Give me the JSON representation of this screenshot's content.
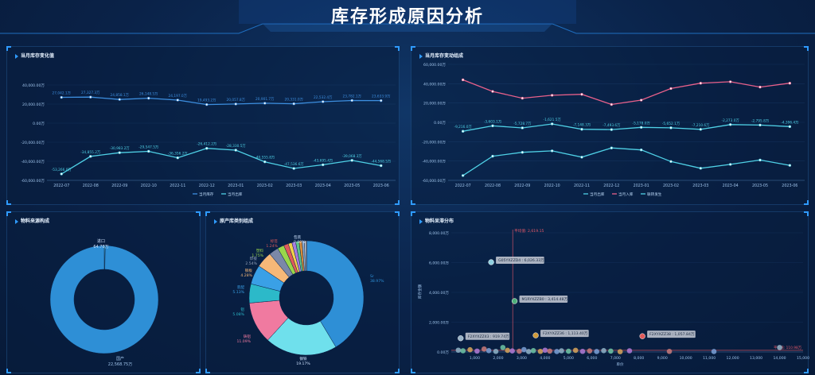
{
  "page": {
    "title": "库存形成原因分析"
  },
  "colors": {
    "accent": "#2f9bff",
    "cyan": "#4fd1e6",
    "pink": "#e8608a",
    "blue": "#3d8fe0"
  },
  "panels": {
    "p1": "当月库存变化值",
    "p2": "当月库存变动组成",
    "p3": "物料来源构成",
    "p4": "原产库类别组成",
    "p5": "物料呆滞分布"
  },
  "chart_data": [
    {
      "type": "line",
      "categories": [
        "2022-07",
        "2022-08",
        "2022-09",
        "2022-10",
        "2022-11",
        "2022-12",
        "2023-01",
        "2023-02",
        "2023-03",
        "2023-04",
        "2023-05",
        "2023-06"
      ],
      "ylim": [
        -60000,
        40000
      ],
      "yticks": [
        "40,000.00万",
        "20,000.00万",
        "0.00万",
        "-20,000.00万",
        "-40,000.00万",
        "-60,000.00万"
      ],
      "series": [
        {
          "name": "当月库存",
          "values": [
            27042.1,
            27327.3,
            24858.1,
            26148.5,
            24197.0,
            19493.2,
            20057.8,
            20901.7,
            20331.0,
            22532.4,
            23782.1,
            23633.9
          ],
          "labels": [
            "27,042.1万",
            "27,327.3万",
            "24,858.1万",
            "26,148.5万",
            "24,197.0万",
            "19,493.2万",
            "20,057.8万",
            "20,901.7万",
            "20,331.0万",
            "22,532.4万",
            "23,782.1万",
            "23,633.9万"
          ]
        },
        {
          "name": "当月出库",
          "values": [
            -53266.0,
            -34855.2,
            -30983.2,
            -29547.5,
            -36356.2,
            -26412.2,
            -28330.5,
            -40555.8,
            -47536.6,
            -43695.4,
            -39068.3,
            -44568.5
          ],
          "labels": [
            "-53,266.0万",
            "-34,855.2万",
            "-30,983.2万",
            "-29,547.5万",
            "-36,356.2万",
            "-26,412.2万",
            "-28,330.5万",
            "-40,555.8万",
            "-47,536.6万",
            "-43,695.4万",
            "-39,068.3万",
            "-44,568.5万"
          ]
        }
      ]
    },
    {
      "type": "line",
      "categories": [
        "2022-07",
        "2022-08",
        "2022-09",
        "2022-10",
        "2022-11",
        "2022-12",
        "2023-01",
        "2023-02",
        "2023-03",
        "2023-04",
        "2023-05",
        "2023-06"
      ],
      "ylim": [
        -60000,
        60000
      ],
      "yticks": [
        "60,000.00万",
        "40,000.00万",
        "20,000.00万",
        "0.00万",
        "-20,000.00万",
        "-40,000.00万",
        "-60,000.00万"
      ],
      "series": [
        {
          "name": "当月出库",
          "values": [
            -55000,
            -35000,
            -31000,
            -29500,
            -36000,
            -26500,
            -28500,
            -40500,
            -47500,
            -43500,
            -39000,
            -44500
          ]
        },
        {
          "name": "当月入库",
          "values": [
            44000,
            32000,
            25000,
            28000,
            29000,
            18500,
            23000,
            35000,
            40500,
            42000,
            36500,
            40500
          ]
        },
        {
          "name": "联转发生",
          "values": [
            -9216.0,
            -3603.1,
            -5728.7,
            -1621.5,
            -7148.3,
            -7493.6,
            -5178.0,
            -5652.1,
            -7210.6,
            -2273.0,
            -2795.8,
            -4396.4
          ],
          "labels": [
            "-9,216.0万",
            "-3,603.1万",
            "-5,728.7万",
            "-1,621.5万",
            "-7,148.3万",
            "-7,493.6万",
            "-5,178.0万",
            "-5,652.1万",
            "-7,210.6万",
            "-2,273.0万",
            "-2,795.8万",
            "-4,396.4万"
          ]
        }
      ]
    },
    {
      "type": "pie",
      "slices": [
        {
          "name": "进口",
          "value": 64.78,
          "pct": "64.78万"
        },
        {
          "name": "国产",
          "value": 22568.75,
          "pct": "22,568.75万"
        }
      ]
    },
    {
      "type": "pie",
      "slices": [
        {
          "name": "Sr",
          "value": 38.97,
          "pct": "38.97%"
        },
        {
          "name": "钢铁",
          "value": 19.17,
          "pct": "19.17%"
        },
        {
          "name": "铸铝",
          "value": 11.09,
          "pct": "11.09%"
        },
        {
          "name": "铝",
          "value": 5.08,
          "pct": "5.08%"
        },
        {
          "name": "装配",
          "value": 5.13,
          "pct": "5.13%"
        },
        {
          "name": "钢板",
          "value": 4.28,
          "pct": "4.28%"
        },
        {
          "name": "焊接",
          "value": 2.54,
          "pct": "2.54%"
        },
        {
          "name": "塑料",
          "value": 1.75,
          "pct": "1.75%"
        },
        {
          "name": "标签",
          "value": 1.24,
          "pct": "1.24%"
        },
        {
          "name": "油漆",
          "value": 1.0,
          "pct": "1.0%"
        },
        {
          "name": "其他",
          "value": 1.0,
          "pct": "1.0%"
        },
        {
          "name": "辅料",
          "value": 0.9,
          "pct": "0.9%"
        },
        {
          "name": "电子",
          "value": 0.8,
          "pct": "0.8%"
        },
        {
          "name": "化工",
          "value": 0.6,
          "pct": "0.6%"
        },
        {
          "name": "紧固",
          "value": 0.55,
          "pct": "0.55%"
        },
        {
          "name": "包装",
          "value": 0.0,
          "pct": "0.00%"
        }
      ]
    },
    {
      "type": "scatter",
      "xlabel": "单价",
      "ylabel": "库存金额",
      "xlim": [
        0,
        15000
      ],
      "ylim": [
        0,
        8000
      ],
      "xticks": [
        "1,000",
        "2,000",
        "3,000",
        "4,000",
        "5,000",
        "6,000",
        "7,000",
        "8,000",
        "9,000",
        "10,000",
        "11,000",
        "12,000",
        "13,000",
        "14,000",
        "15,000"
      ],
      "yticks": [
        "8,000.00万",
        "6,000.00万",
        "4,000.00万",
        "2,000.00万",
        "0.00万"
      ],
      "avg_x_label": "平均值: 2,619.15",
      "avg_y_label": "平均值: 110.98万",
      "avg_x": 2619.15,
      "avg_y": 110.98,
      "annotated": [
        {
          "label": "G05YXZZD4 : 6,026.33万",
          "x": 1700,
          "y": 6026
        },
        {
          "label": "M1RYXZZB0 : 3,414.48万",
          "x": 2700,
          "y": 3414
        },
        {
          "label": "F2XYXZZ36 : 1,113.40万",
          "x": 3600,
          "y": 1113
        },
        {
          "label": "F2XYXZZ38 : 1,057.84万",
          "x": 8150,
          "y": 1058
        },
        {
          "label": "F2XYXZZ43 : 919.74万",
          "x": 400,
          "y": 920
        }
      ],
      "points": [
        {
          "x": 300,
          "y": 120
        },
        {
          "x": 500,
          "y": 80
        },
        {
          "x": 800,
          "y": 150
        },
        {
          "x": 1100,
          "y": 60
        },
        {
          "x": 1400,
          "y": 200
        },
        {
          "x": 1600,
          "y": 90
        },
        {
          "x": 1900,
          "y": 40
        },
        {
          "x": 2200,
          "y": 300
        },
        {
          "x": 2400,
          "y": 110
        },
        {
          "x": 2600,
          "y": 70
        },
        {
          "x": 2900,
          "y": 50
        },
        {
          "x": 3100,
          "y": 160
        },
        {
          "x": 3300,
          "y": 30
        },
        {
          "x": 3500,
          "y": 90
        },
        {
          "x": 3800,
          "y": 40
        },
        {
          "x": 4000,
          "y": 120
        },
        {
          "x": 4200,
          "y": 60
        },
        {
          "x": 4500,
          "y": 30
        },
        {
          "x": 4700,
          "y": 80
        },
        {
          "x": 5000,
          "y": 50
        },
        {
          "x": 5300,
          "y": 110
        },
        {
          "x": 5600,
          "y": 40
        },
        {
          "x": 5900,
          "y": 70
        },
        {
          "x": 6200,
          "y": 30
        },
        {
          "x": 6500,
          "y": 90
        },
        {
          "x": 6800,
          "y": 60
        },
        {
          "x": 7200,
          "y": 20
        },
        {
          "x": 7600,
          "y": 80
        },
        {
          "x": 9300,
          "y": 40
        },
        {
          "x": 11200,
          "y": 30
        },
        {
          "x": 14000,
          "y": 300
        }
      ]
    }
  ]
}
